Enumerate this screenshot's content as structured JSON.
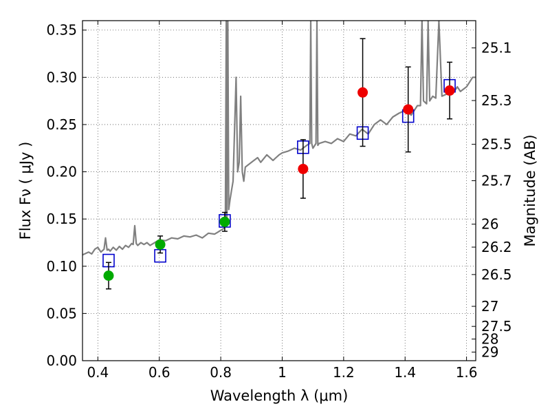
{
  "chart_data": {
    "type": "scatter",
    "title": "",
    "xlabel": "Wavelength  λ (μm)",
    "ylabel": "Flux  Fν  ( μJy )",
    "right_ylabel": "Magnitude (AB)",
    "xlim": [
      0.35,
      1.63
    ],
    "ylim": [
      0.0,
      0.36
    ],
    "grid": true,
    "x_ticks": [
      {
        "value": 0.4,
        "label": "0.4"
      },
      {
        "value": 0.6,
        "label": "0.6"
      },
      {
        "value": 0.8,
        "label": "0.8"
      },
      {
        "value": 1.0,
        "label": "1"
      },
      {
        "value": 1.2,
        "label": "1.2"
      },
      {
        "value": 1.4,
        "label": "1.4"
      },
      {
        "value": 1.6,
        "label": "1.6"
      }
    ],
    "y_ticks": [
      {
        "value": 0.0,
        "label": "0.00"
      },
      {
        "value": 0.05,
        "label": "0.05"
      },
      {
        "value": 0.1,
        "label": "0.10"
      },
      {
        "value": 0.15,
        "label": "0.15"
      },
      {
        "value": 0.2,
        "label": "0.20"
      },
      {
        "value": 0.25,
        "label": "0.25"
      },
      {
        "value": 0.3,
        "label": "0.30"
      },
      {
        "value": 0.35,
        "label": "0.35"
      }
    ],
    "right_ticks": [
      {
        "value": 25.1,
        "label": "25.1"
      },
      {
        "value": 25.3,
        "label": "25.3"
      },
      {
        "value": 25.5,
        "label": "25.5"
      },
      {
        "value": 25.7,
        "label": "25.7"
      },
      {
        "value": 26,
        "label": "26"
      },
      {
        "value": 26.2,
        "label": "26.2"
      },
      {
        "value": 26.5,
        "label": "26.5"
      },
      {
        "value": 27,
        "label": "27"
      },
      {
        "value": 27.5,
        "label": "27.5"
      },
      {
        "value": 28,
        "label": "28"
      },
      {
        "value": 29,
        "label": "29"
      }
    ],
    "colors": {
      "spectrum": "#808080",
      "model": "#0000cc",
      "optical": "#00aa00",
      "infrared": "#ee0000",
      "errorbar": "#000000",
      "grid": "#555555"
    },
    "series": [
      {
        "name": "model spectrum",
        "kind": "line",
        "x": [
          0.35,
          0.37,
          0.38,
          0.39,
          0.4,
          0.41,
          0.42,
          0.425,
          0.43,
          0.435,
          0.44,
          0.45,
          0.46,
          0.47,
          0.48,
          0.49,
          0.5,
          0.51,
          0.515,
          0.52,
          0.525,
          0.53,
          0.54,
          0.55,
          0.56,
          0.57,
          0.58,
          0.59,
          0.6,
          0.62,
          0.64,
          0.66,
          0.68,
          0.7,
          0.72,
          0.74,
          0.76,
          0.78,
          0.79,
          0.8,
          0.81,
          0.815,
          0.818,
          0.82,
          0.823,
          0.826,
          0.83,
          0.835,
          0.84,
          0.85,
          0.855,
          0.86,
          0.865,
          0.87,
          0.875,
          0.88,
          0.9,
          0.92,
          0.93,
          0.95,
          0.97,
          0.98,
          0.99,
          1.0,
          1.02,
          1.04,
          1.06,
          1.08,
          1.09,
          1.093,
          1.096,
          1.1,
          1.11,
          1.113,
          1.116,
          1.12,
          1.14,
          1.16,
          1.18,
          1.2,
          1.22,
          1.24,
          1.26,
          1.28,
          1.3,
          1.32,
          1.34,
          1.36,
          1.38,
          1.4,
          1.42,
          1.44,
          1.45,
          1.455,
          1.46,
          1.47,
          1.475,
          1.48,
          1.49,
          1.5,
          1.51,
          1.52,
          1.54,
          1.56,
          1.57,
          1.58,
          1.6,
          1.61,
          1.62,
          1.63
        ],
        "y": [
          0.112,
          0.115,
          0.113,
          0.118,
          0.12,
          0.115,
          0.118,
          0.13,
          0.117,
          0.118,
          0.116,
          0.12,
          0.117,
          0.121,
          0.118,
          0.122,
          0.12,
          0.124,
          0.123,
          0.143,
          0.124,
          0.122,
          0.125,
          0.123,
          0.125,
          0.122,
          0.124,
          0.126,
          0.128,
          0.127,
          0.13,
          0.129,
          0.132,
          0.131,
          0.133,
          0.13,
          0.135,
          0.134,
          0.136,
          0.138,
          0.14,
          0.145,
          0.36,
          0.15,
          0.36,
          0.16,
          0.17,
          0.18,
          0.19,
          0.3,
          0.2,
          0.21,
          0.28,
          0.2,
          0.19,
          0.205,
          0.21,
          0.215,
          0.21,
          0.218,
          0.212,
          0.215,
          0.218,
          0.22,
          0.222,
          0.225,
          0.223,
          0.228,
          0.23,
          0.36,
          0.23,
          0.225,
          0.23,
          0.36,
          0.228,
          0.23,
          0.232,
          0.23,
          0.235,
          0.232,
          0.24,
          0.238,
          0.245,
          0.24,
          0.25,
          0.255,
          0.25,
          0.258,
          0.262,
          0.265,
          0.26,
          0.27,
          0.27,
          0.36,
          0.275,
          0.272,
          0.36,
          0.275,
          0.28,
          0.278,
          0.36,
          0.28,
          0.283,
          0.285,
          0.29,
          0.285,
          0.29,
          0.295,
          0.3,
          0.3
        ]
      },
      {
        "name": "model photometry",
        "kind": "open-square",
        "x": [
          0.435,
          0.603,
          0.813,
          1.068,
          1.262,
          1.41,
          1.545
        ],
        "y": [
          0.106,
          0.111,
          0.148,
          0.226,
          0.241,
          0.259,
          0.291
        ]
      },
      {
        "name": "optical photometry",
        "kind": "filled-circle",
        "x": [
          0.435,
          0.603,
          0.813
        ],
        "y": [
          0.09,
          0.123,
          0.147
        ],
        "yerr": [
          0.014,
          0.009,
          0.01
        ]
      },
      {
        "name": "infrared photometry",
        "kind": "filled-circle",
        "x": [
          1.068,
          1.262,
          1.41,
          1.545
        ],
        "y": [
          0.203,
          0.284,
          0.266,
          0.286
        ],
        "yerr": [
          0.031,
          0.057,
          0.045,
          0.03
        ]
      }
    ]
  }
}
